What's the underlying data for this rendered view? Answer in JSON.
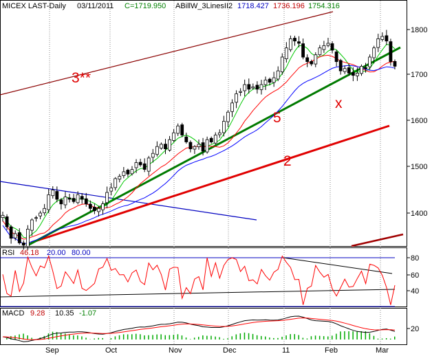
{
  "colors": {
    "frame": "#000000",
    "up_candle": "#ffffff",
    "down_candle": "#000000",
    "ma_fast": "#00c800",
    "ma_mid": "#ff0000",
    "ma_slow": "#0000ff",
    "trend_green": "#007a00",
    "trend_red": "#e00000",
    "channel": "#8b0000",
    "blue_line": "#0000c0",
    "rsi_line": "#ff0000",
    "macd_line": "#000000",
    "signal_line": "#ff0000",
    "histogram": "#00aa00",
    "level_line": "#0000c0",
    "label_red": "#e00000"
  },
  "header": {
    "title": "MICEX LAST-Daily",
    "date": "03/11/2011",
    "close": "C=1719.950",
    "indicator": "ABillW_3LinesII2",
    "val1": "1718.427",
    "val2": "1736.196",
    "val3": "1754.316"
  },
  "annotations": {
    "channel_label": "3**",
    "trend5_label": "5",
    "trend2_label": "2",
    "x_label": "x"
  },
  "rsi_header": {
    "name": "RSI",
    "value": "46.18",
    "lower": "20.00",
    "upper": "80.00"
  },
  "macd_header": {
    "name": "MACD",
    "macd": "9.28",
    "signal": "10.35",
    "hist": "-1.07"
  },
  "price_ticks": [
    "1800",
    "1700",
    "1600",
    "1500",
    "1400"
  ],
  "rsi_ticks": [
    "80",
    "60",
    "40"
  ],
  "macd_ticks": [
    "20"
  ],
  "x_ticks": [
    "Sep",
    "Oct",
    "Nov",
    "Dec",
    "11",
    "Feb",
    "Mar"
  ],
  "chart_data": {
    "type": "candlestick",
    "price_axis": {
      "range": [
        1320,
        1860
      ]
    },
    "months": [
      "Sep",
      "Oct",
      "Nov",
      "Dec",
      "11",
      "Feb",
      "Mar"
    ],
    "close_series": [
      1395,
      1370,
      1345,
      1355,
      1335,
      1330,
      1365,
      1385,
      1390,
      1400,
      1410,
      1440,
      1450,
      1430,
      1420,
      1435,
      1430,
      1425,
      1440,
      1430,
      1420,
      1410,
      1405,
      1410,
      1420,
      1445,
      1455,
      1475,
      1480,
      1490,
      1485,
      1495,
      1510,
      1505,
      1495,
      1520,
      1530,
      1545,
      1550,
      1540,
      1560,
      1575,
      1590,
      1570,
      1555,
      1540,
      1545,
      1550,
      1535,
      1560,
      1555,
      1570,
      1575,
      1600,
      1620,
      1640,
      1660,
      1665,
      1680,
      1670,
      1675,
      1670,
      1680,
      1690,
      1685,
      1695,
      1710,
      1740,
      1760,
      1780,
      1775,
      1770,
      1740,
      1730,
      1725,
      1745,
      1760,
      1765,
      1770,
      1755,
      1730,
      1710,
      1715,
      1705,
      1700,
      1705,
      1720,
      1715,
      1740,
      1760,
      1780,
      1785,
      1775,
      1730,
      1720
    ],
    "rsi": {
      "range": [
        20,
        85
      ],
      "last": 46.18,
      "levels": [
        80,
        20
      ]
    },
    "macd": {
      "macd": 9.28,
      "signal": 10.35,
      "hist": -1.07
    }
  }
}
